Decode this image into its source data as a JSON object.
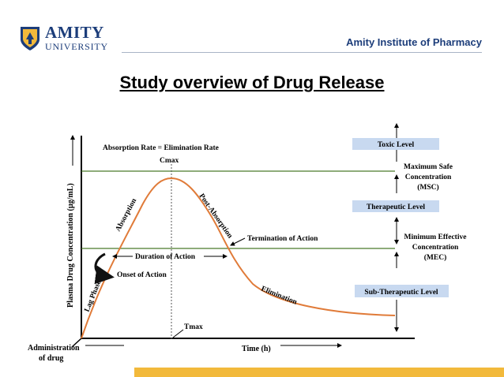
{
  "header": {
    "logo_name": "AMITY",
    "logo_sub": "UNIVERSITY",
    "institute": "Amity Institute of Pharmacy"
  },
  "slide": {
    "title": "Study overview of Drug Release"
  },
  "diagram": {
    "y_axis_label": "Plasma Drug Concentration (µg/mL)",
    "x_axis_label": "Time (h)",
    "origin_label_line1": "Administration",
    "origin_label_line2": "of drug",
    "absorption_eq": "Absorption Rate = Elimination Rate",
    "cmax": "Cmax",
    "tmax": "Tmax",
    "absorption": "Absorption",
    "post_absorption": "Post-Absorption",
    "lag_phase": "Lag Phase",
    "onset": "Onset of Action",
    "duration": "Duration of Action",
    "termination": "Termination of Action",
    "elimination": "Elimination",
    "levels": {
      "toxic": "Toxic Level",
      "therapeutic": "Therapeutic Level",
      "sub_therapeutic": "Sub-Therapeutic Level",
      "msc_line1": "Maximum Safe",
      "msc_line2": "Concentration",
      "msc_line3": "(MSC)",
      "mec_line1": "Minimum Effective",
      "mec_line2": "Concentration",
      "mec_line3": "(MEC)"
    },
    "colors": {
      "curve": "#e07b39",
      "threshold_lines": "#4a7a2a",
      "level_box": "#c8d9f0",
      "accent_bar": "#f2b93b",
      "brand_blue": "#1c3d7a"
    }
  }
}
